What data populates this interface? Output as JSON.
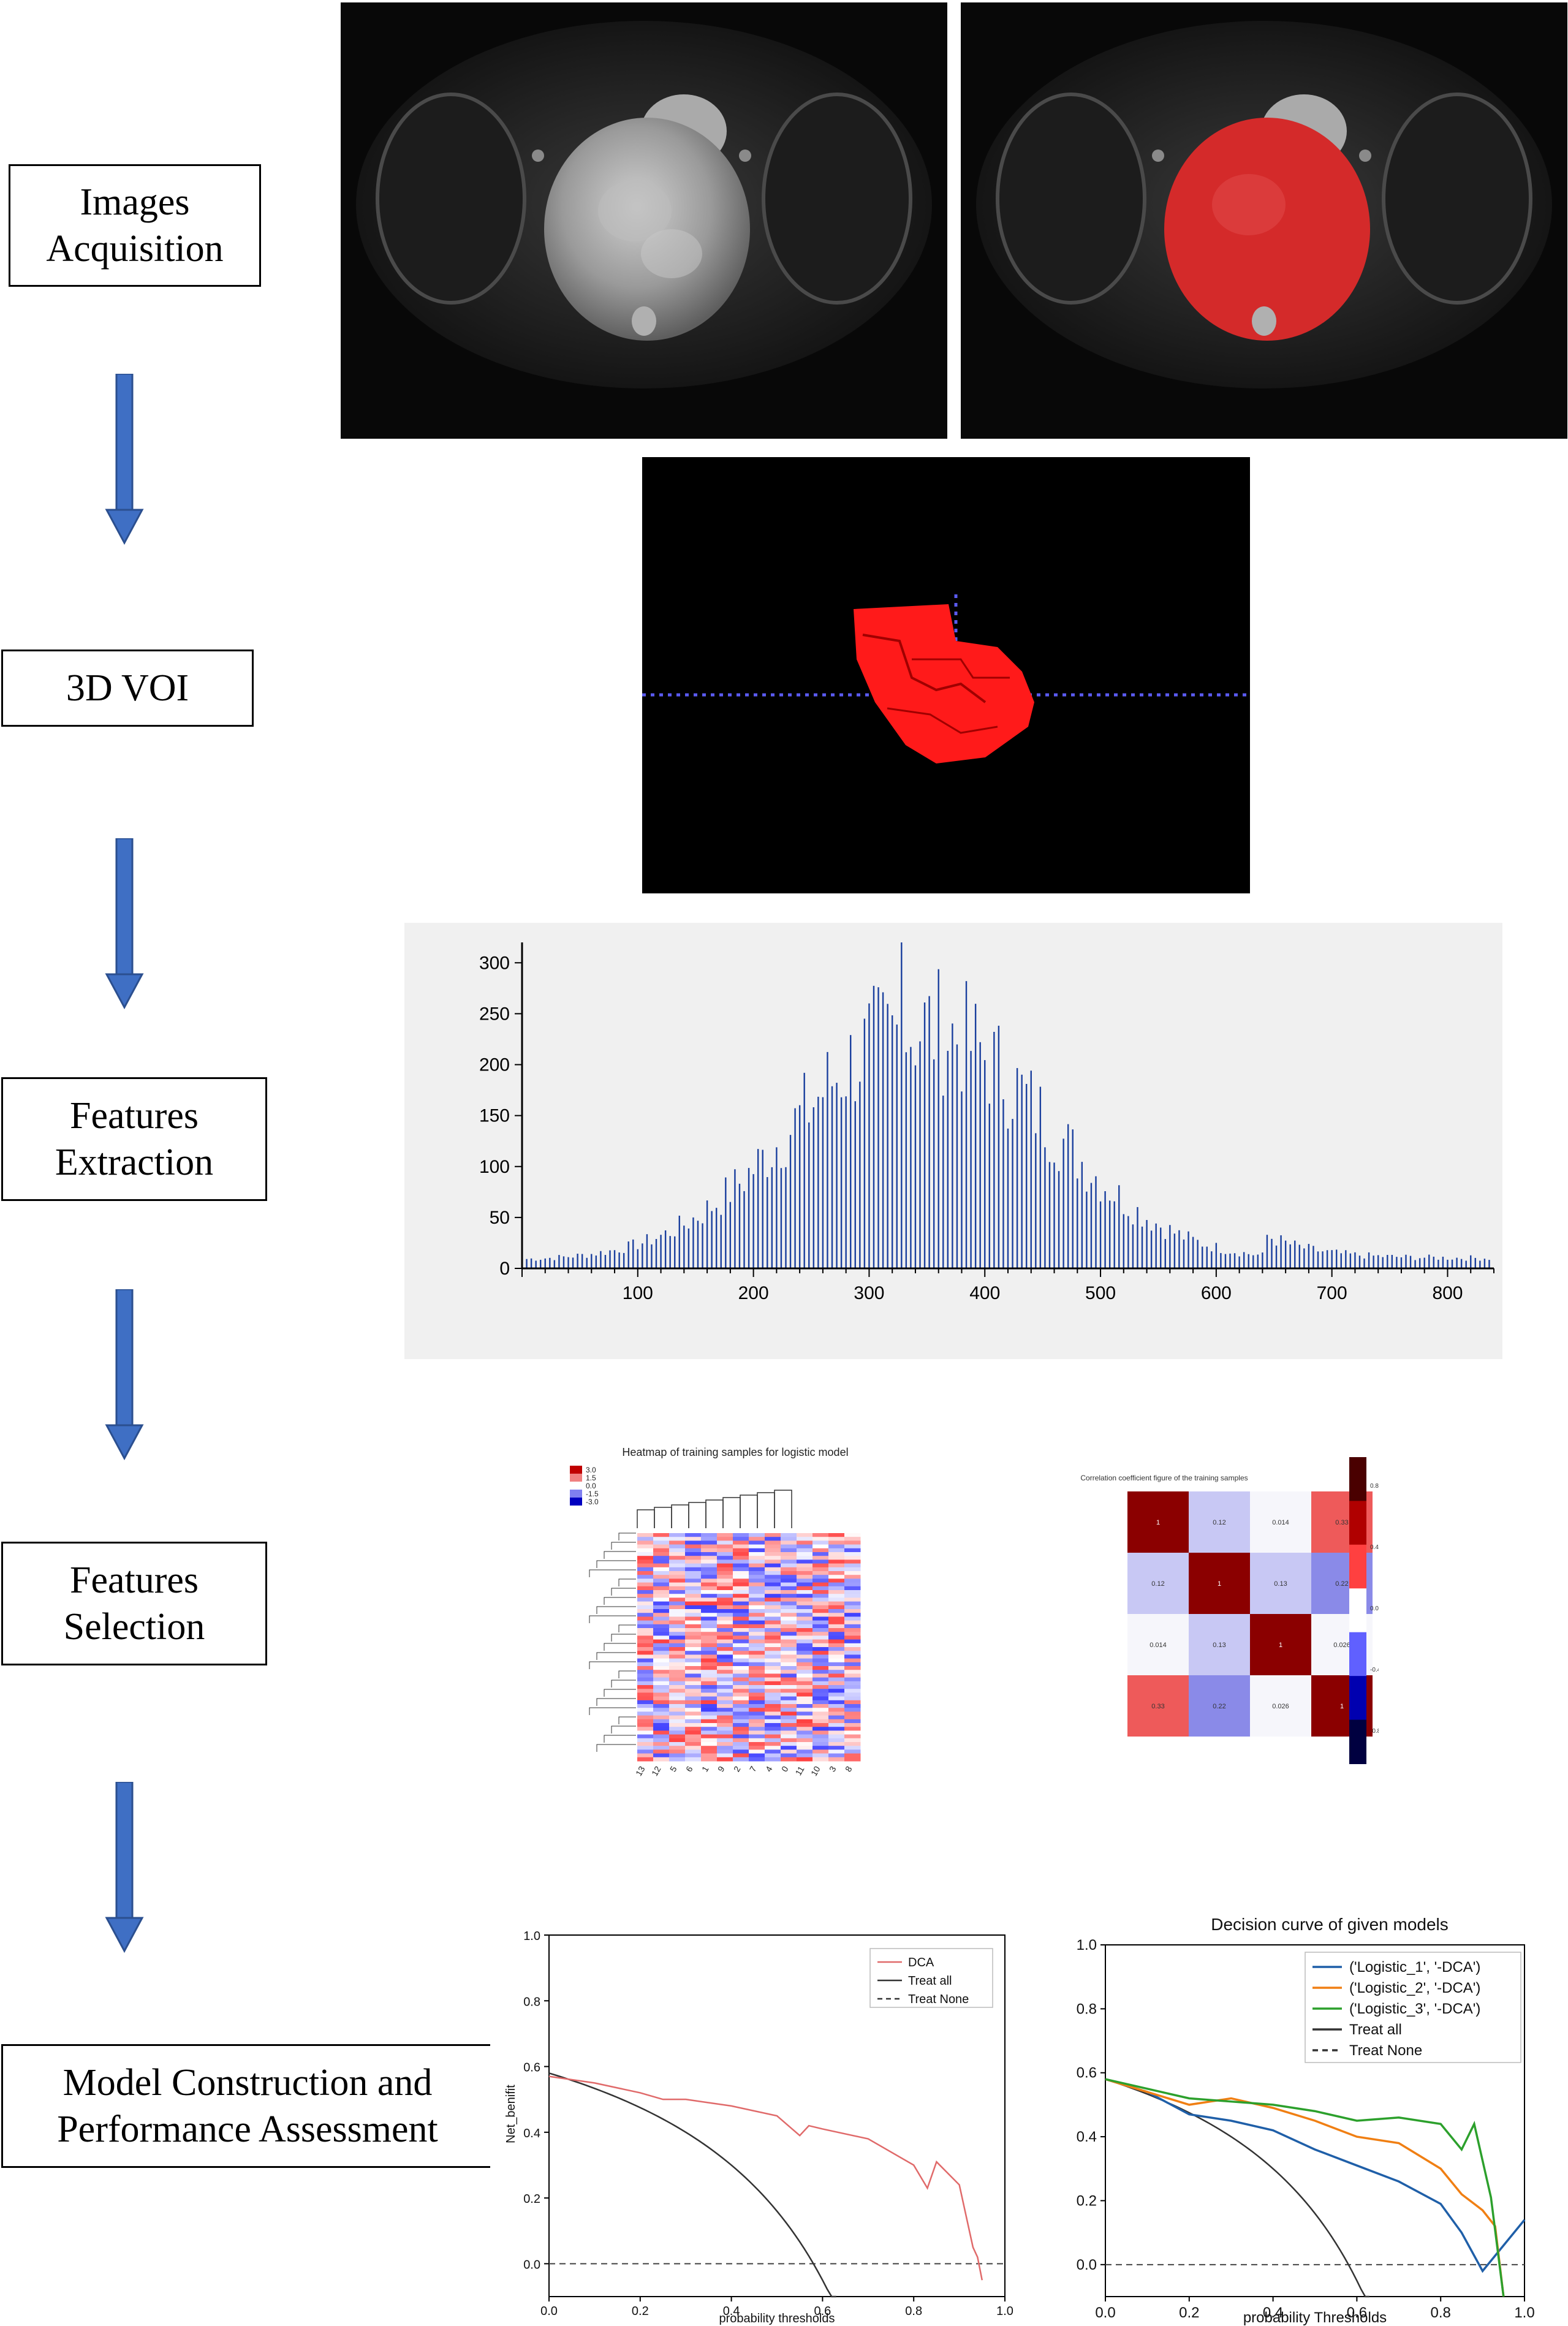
{
  "stages": [
    {
      "id": "images-acquisition",
      "lines": [
        "Images",
        "Acquisition"
      ]
    },
    {
      "id": "3d-voi",
      "lines": [
        "3D VOI"
      ]
    },
    {
      "id": "features-extraction",
      "lines": [
        "Features",
        "Extraction"
      ]
    },
    {
      "id": "features-selection",
      "lines": [
        "Features",
        "Selection"
      ]
    },
    {
      "id": "model-construction",
      "lines": [
        "Model Construction and",
        "Performance Assessment"
      ]
    }
  ],
  "colors": {
    "arrow": "#3f6fc4",
    "arrow_stroke": "#2b4f8f",
    "hist_bar": "#1a3f9e",
    "voi_red": "#ff1a1a",
    "dca_red": "#e06a6a"
  },
  "histogram": {
    "yticks": [
      "0",
      "50",
      "100",
      "150",
      "200",
      "250",
      "300"
    ],
    "xticks": [
      "100",
      "200",
      "300",
      "400",
      "500",
      "600",
      "700",
      "800"
    ],
    "xlim": [
      0,
      840
    ],
    "ylim": [
      0,
      320
    ]
  },
  "heatmap": {
    "title": "Heatmap of training samples for logistic model",
    "legend": [
      "3.0",
      "1.5",
      "0.0",
      "-1.5",
      "-3.0"
    ],
    "columns": [
      "13",
      "12",
      "5",
      "6",
      "1",
      "9",
      "2",
      "7",
      "4",
      "0",
      "11",
      "10",
      "3",
      "8"
    ]
  },
  "correlation": {
    "title": "Correlation coefficient figure of the training samples",
    "values": [
      [
        "1",
        "0.12",
        "0.014",
        "0.33"
      ],
      [
        "0.12",
        "1",
        "0.13",
        "0.22"
      ],
      [
        "0.014",
        "0.13",
        "1",
        "0.026"
      ],
      [
        "0.33",
        "0.22",
        "0.026",
        "1"
      ]
    ],
    "scale": [
      "0.8",
      "0.4",
      "0.0",
      "-0.4",
      "-0.8"
    ]
  },
  "dca1": {
    "ylabel": "Net_benifit",
    "xlabel": "probability thresholds",
    "legend": [
      "DCA",
      "Treat all",
      "Treat None"
    ],
    "xticks": [
      "0.0",
      "0.2",
      "0.4",
      "0.6",
      "0.8",
      "1.0"
    ],
    "yticks": [
      "0.0",
      "0.2",
      "0.4",
      "0.6",
      "0.8",
      "1.0"
    ],
    "series": {
      "x": [
        0,
        0.1,
        0.2,
        0.25,
        0.3,
        0.4,
        0.5,
        0.55,
        0.57,
        0.6,
        0.7,
        0.8,
        0.83,
        0.85,
        0.9,
        0.93,
        0.94,
        0.95
      ],
      "y": [
        0.57,
        0.55,
        0.52,
        0.5,
        0.5,
        0.48,
        0.45,
        0.39,
        0.42,
        0.41,
        0.38,
        0.3,
        0.23,
        0.31,
        0.24,
        0.05,
        0.02,
        -0.05
      ]
    }
  },
  "dca2": {
    "title": "Decision curve of given models",
    "xlabel": "probability Thresholds",
    "legend": [
      "('Logistic_1', '-DCA')",
      "('Logistic_2', '-DCA')",
      "('Logistic_3', '-DCA')",
      "Treat all",
      "Treat None"
    ],
    "xticks": [
      "0.0",
      "0.2",
      "0.4",
      "0.6",
      "0.8",
      "1.0"
    ],
    "yticks": [
      "0.0",
      "0.2",
      "0.4",
      "0.6",
      "0.8",
      "1.0"
    ],
    "series": [
      {
        "color": "#1f5fa8",
        "x": [
          0,
          0.1,
          0.2,
          0.3,
          0.4,
          0.5,
          0.6,
          0.7,
          0.8,
          0.85,
          0.9,
          0.95,
          1.0
        ],
        "y": [
          0.58,
          0.54,
          0.47,
          0.45,
          0.42,
          0.36,
          0.31,
          0.26,
          0.19,
          0.1,
          -0.02,
          0.06,
          0.14
        ]
      },
      {
        "color": "#f07f13",
        "x": [
          0,
          0.1,
          0.2,
          0.3,
          0.4,
          0.5,
          0.6,
          0.7,
          0.8,
          0.85,
          0.9,
          0.93,
          0.95
        ],
        "y": [
          0.58,
          0.54,
          0.5,
          0.52,
          0.49,
          0.45,
          0.4,
          0.38,
          0.3,
          0.22,
          0.17,
          0.12,
          -0.1
        ]
      },
      {
        "color": "#2ca02c",
        "x": [
          0,
          0.1,
          0.2,
          0.3,
          0.4,
          0.5,
          0.6,
          0.7,
          0.8,
          0.85,
          0.88,
          0.92,
          0.95
        ],
        "y": [
          0.58,
          0.55,
          0.52,
          0.51,
          0.5,
          0.48,
          0.45,
          0.46,
          0.44,
          0.36,
          0.44,
          0.21,
          -0.1
        ]
      }
    ]
  }
}
